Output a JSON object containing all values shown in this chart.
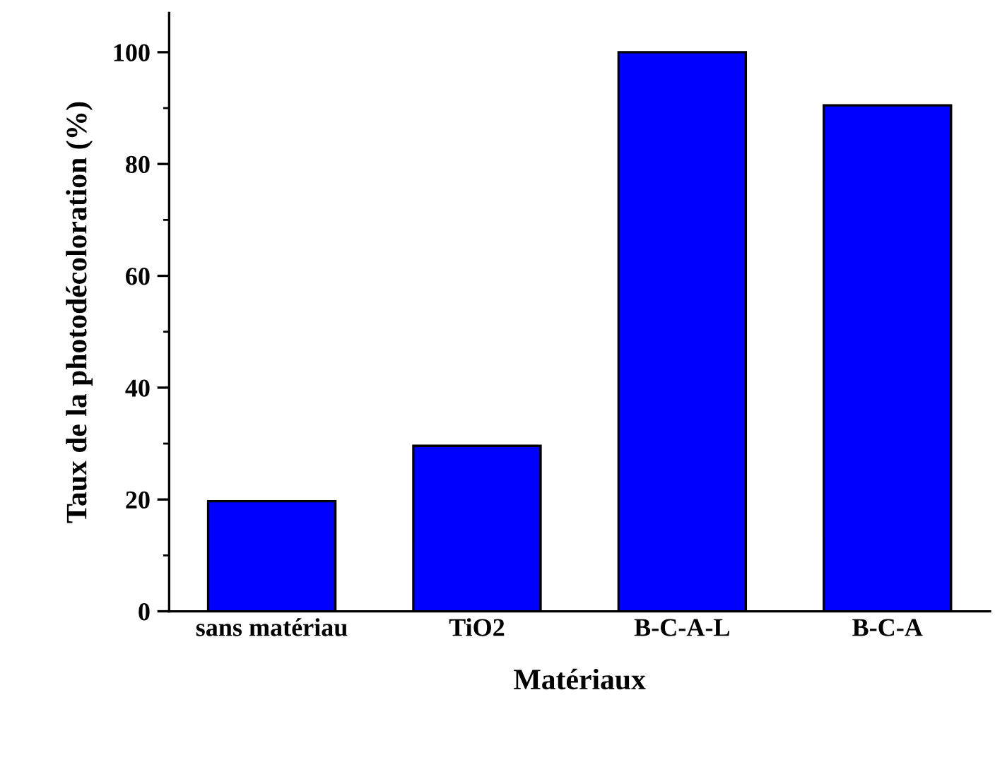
{
  "chart_data": {
    "type": "bar",
    "xlabel": "Matériaux",
    "ylabel": "Taux de la photodécoloration (%)",
    "categories": [
      "sans matériau",
      "TiO2",
      "B-C-A-L",
      "B-C-A"
    ],
    "values": [
      19.7,
      29.6,
      100,
      90.5
    ],
    "color": "#0000ff",
    "ylim": [
      0,
      107
    ],
    "yticks": [
      0,
      20,
      40,
      60,
      80,
      100
    ],
    "grid": false,
    "legend": false
  }
}
